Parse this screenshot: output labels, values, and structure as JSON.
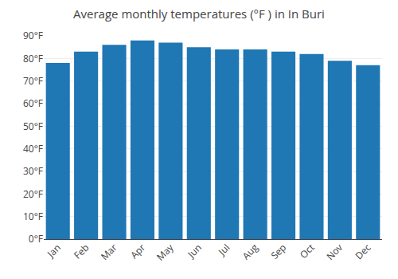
{
  "chart_data": {
    "type": "bar",
    "title": "Average monthly temperatures (°F ) in In Buri",
    "categories": [
      "Jan",
      "Feb",
      "Mar",
      "Apr",
      "May",
      "Jun",
      "Jul",
      "Aug",
      "Sep",
      "Oct",
      "Nov",
      "Dec"
    ],
    "values": [
      78,
      83,
      86,
      88,
      87,
      85,
      84,
      84,
      83,
      82,
      79,
      77
    ],
    "ylim": [
      0,
      90
    ],
    "yticks": [
      {
        "value": 0,
        "label": "0°F"
      },
      {
        "value": 10,
        "label": "10°F"
      },
      {
        "value": 20,
        "label": "20°F"
      },
      {
        "value": 30,
        "label": "30°F"
      },
      {
        "value": 40,
        "label": "40°F"
      },
      {
        "value": 50,
        "label": "50°F"
      },
      {
        "value": 60,
        "label": "60°F"
      },
      {
        "value": 70,
        "label": "70°F"
      },
      {
        "value": 80,
        "label": "80°F"
      },
      {
        "value": 90,
        "label": "90°F"
      }
    ],
    "grid": true
  }
}
